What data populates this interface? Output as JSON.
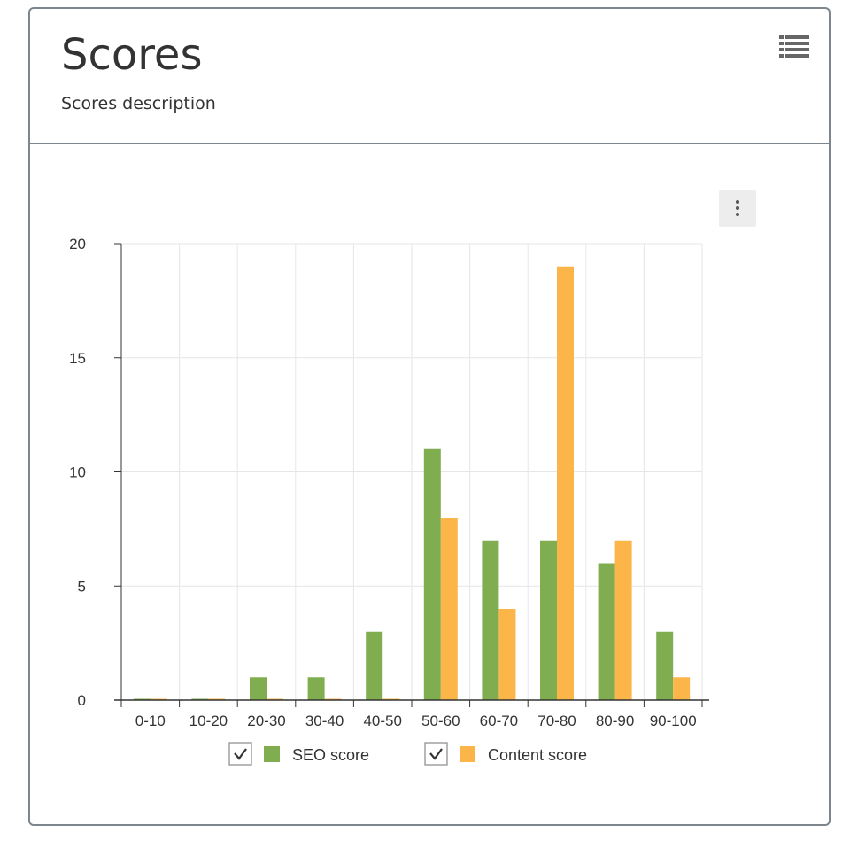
{
  "header": {
    "title": "Scores",
    "description": "Scores description",
    "list_icon": "list-icon"
  },
  "chart_menu_icon": "more-vertical-icon",
  "colors": {
    "seo": "#80ad4f",
    "content": "#fbb548",
    "grid": "#e6e6e6",
    "axis": "#333333"
  },
  "chart_data": {
    "type": "bar",
    "categories": [
      "0-10",
      "10-20",
      "20-30",
      "30-40",
      "40-50",
      "50-60",
      "60-70",
      "70-80",
      "80-90",
      "90-100"
    ],
    "series": [
      {
        "name": "SEO score",
        "values": [
          0,
          0,
          1,
          1,
          3,
          11,
          7,
          7,
          6,
          3
        ]
      },
      {
        "name": "Content score",
        "values": [
          0,
          0,
          0,
          0,
          0,
          8,
          4,
          19,
          7,
          1
        ]
      }
    ],
    "ylim": [
      0,
      20
    ],
    "yticks": [
      0,
      5,
      10,
      15,
      20
    ],
    "grid": true,
    "legend": "bottom",
    "legend_checked": [
      true,
      true
    ]
  }
}
